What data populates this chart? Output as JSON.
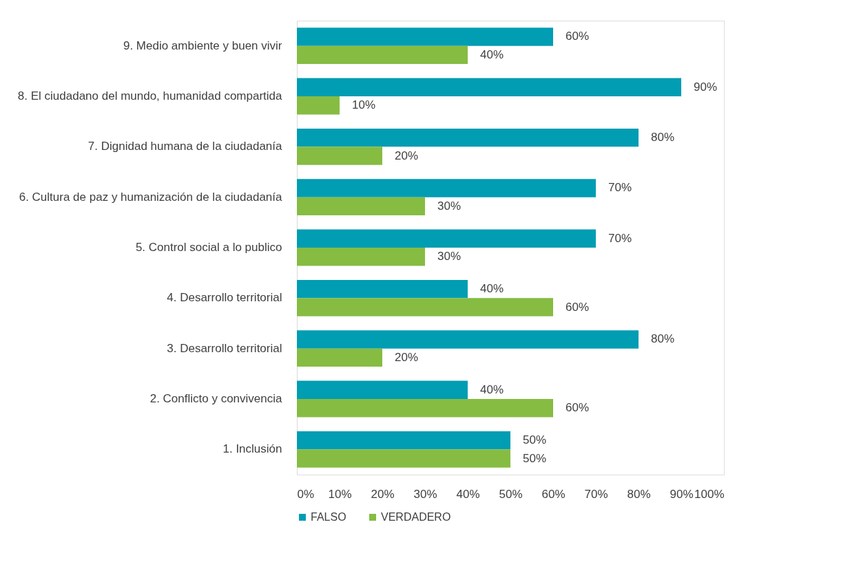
{
  "chart_data": {
    "type": "bar",
    "orientation": "horizontal",
    "categories": [
      "9. Medio ambiente y buen vivir ",
      "8. El ciudadano del mundo,  humanidad compartida",
      "7. Dignidad humana de la ciudadanía",
      "6. Cultura de paz y humanización de la ciudadanía",
      "5. Control social a lo publico",
      "4. Desarrollo territorial",
      "3. Desarrollo territorial",
      "2. Conflicto y convivencia",
      "1. Inclusión"
    ],
    "series": [
      {
        "name": "FALSO",
        "color": "#009db3",
        "values": [
          60,
          90,
          80,
          70,
          70,
          40,
          80,
          40,
          50
        ],
        "value_labels": [
          "60%",
          "90%",
          "80%",
          "70%",
          "70%",
          "40%",
          "80%",
          "40%",
          "50%"
        ]
      },
      {
        "name": "VERDADERO",
        "color": "#86bc42",
        "values": [
          40,
          10,
          20,
          30,
          30,
          60,
          20,
          60,
          50
        ],
        "value_labels": [
          "40%",
          "10%",
          "20%",
          "30%",
          "30%",
          "60%",
          "20%",
          "60%",
          "50%"
        ]
      }
    ],
    "xlim": [
      0,
      100
    ],
    "xticks": [
      {
        "value": 0,
        "label": "0%"
      },
      {
        "value": 10,
        "label": "10%"
      },
      {
        "value": 20,
        "label": "20%"
      },
      {
        "value": 30,
        "label": "30%"
      },
      {
        "value": 40,
        "label": "40%"
      },
      {
        "value": 50,
        "label": "50%"
      },
      {
        "value": 60,
        "label": "60%"
      },
      {
        "value": 70,
        "label": "70%"
      },
      {
        "value": 80,
        "label": "80%"
      },
      {
        "value": 90,
        "label": "90%"
      },
      {
        "value": 100,
        "label": "100%"
      }
    ],
    "grid": false,
    "legend": "bottom"
  }
}
